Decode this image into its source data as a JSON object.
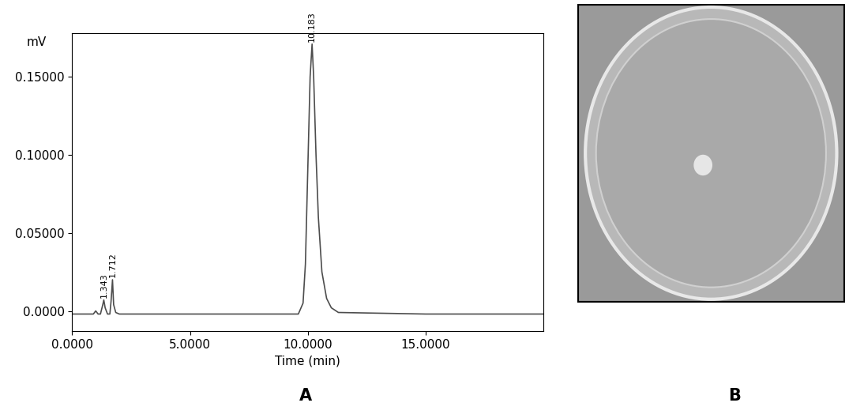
{
  "chart_data": {
    "type": "line",
    "caption": "A",
    "x_label": "Time (min)",
    "y_label": "mV",
    "x": [
      0,
      0.9,
      1.0,
      1.1,
      1.2,
      1.3,
      1.343,
      1.4,
      1.5,
      1.6,
      1.65,
      1.712,
      1.76,
      1.85,
      2.0,
      5.0,
      9.6,
      9.8,
      9.9,
      10.0,
      10.1,
      10.183,
      10.25,
      10.35,
      10.45,
      10.6,
      10.8,
      11.0,
      11.3,
      15.0,
      20.0
    ],
    "values": [
      -0.002,
      -0.002,
      0.0,
      -0.002,
      -0.002,
      0.004,
      0.007,
      0.002,
      -0.002,
      -0.002,
      0.006,
      0.02,
      0.004,
      -0.001,
      -0.002,
      -0.002,
      -0.002,
      0.005,
      0.03,
      0.09,
      0.15,
      0.171,
      0.15,
      0.1,
      0.06,
      0.025,
      0.008,
      0.002,
      -0.001,
      -0.002,
      -0.002
    ],
    "color": "#4d4d4d",
    "xlim": [
      0,
      20
    ],
    "ylim": [
      -0.013,
      0.178
    ],
    "xticks": [
      {
        "value": 0,
        "label": "0.0000"
      },
      {
        "value": 5,
        "label": "5.0000"
      },
      {
        "value": 10,
        "label": "10.0000"
      },
      {
        "value": 15,
        "label": "15.0000"
      }
    ],
    "yticks": [
      {
        "value": 0,
        "label": "0.0000"
      },
      {
        "value": 0.05,
        "label": "0.05000"
      },
      {
        "value": 0.1,
        "label": "0.10000"
      },
      {
        "value": 0.15,
        "label": "0.15000"
      }
    ],
    "annotations": [
      {
        "x": 1.343,
        "y": 0.007,
        "label": "1.343"
      },
      {
        "x": 1.712,
        "y": 0.02,
        "label": "1.712"
      },
      {
        "x": 10.183,
        "y": 0.171,
        "label": "10.183"
      }
    ],
    "grid": false
  },
  "photo": {
    "caption": "B"
  }
}
